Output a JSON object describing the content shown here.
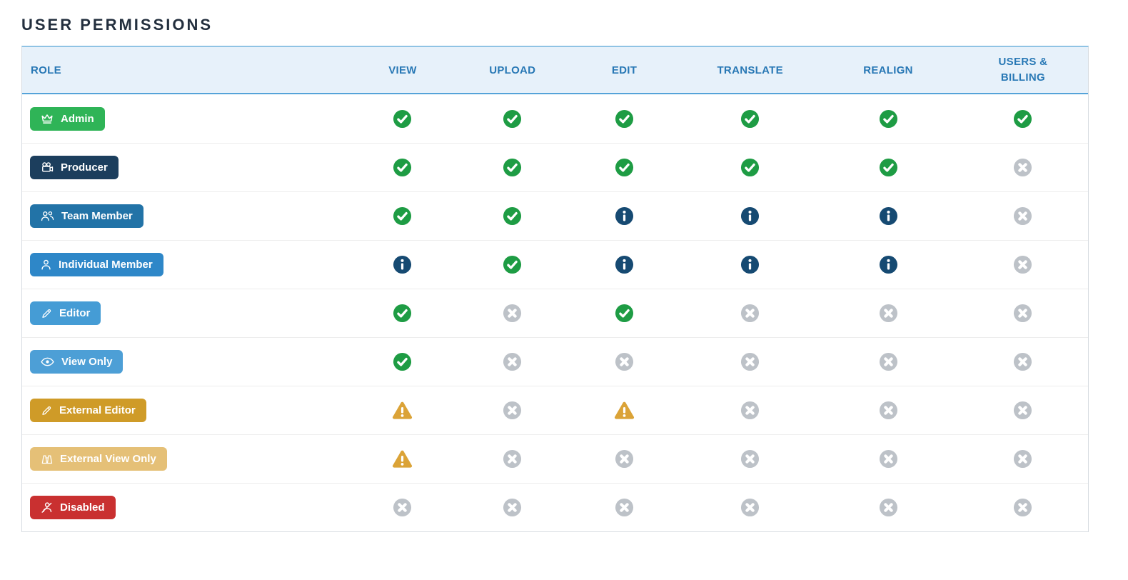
{
  "page": {
    "title": "USER PERMISSIONS"
  },
  "table": {
    "role_header": "ROLE",
    "columns": [
      "VIEW",
      "UPLOAD",
      "EDIT",
      "TRANSLATE",
      "REALIGN",
      "USERS & BILLING"
    ],
    "rows": [
      {
        "role": "Admin",
        "icon": "crown-icon",
        "badge_color": "#2fb457",
        "permissions": [
          "check-circle",
          "check-circle",
          "check-circle",
          "check-circle",
          "check-circle",
          "check-circle"
        ]
      },
      {
        "role": "Producer",
        "icon": "video-camera-icon",
        "badge_color": "#1c3e5d",
        "permissions": [
          "check-circle",
          "check-circle",
          "check-circle",
          "check-circle",
          "check-circle",
          "x-circle"
        ]
      },
      {
        "role": "Team Member",
        "icon": "team-icon",
        "badge_color": "#2273a7",
        "permissions": [
          "check-circle",
          "check-circle",
          "info-circle",
          "info-circle",
          "info-circle",
          "x-circle"
        ]
      },
      {
        "role": "Individual Member",
        "icon": "person-icon",
        "badge_color": "#2e87c8",
        "permissions": [
          "info-circle",
          "check-circle",
          "info-circle",
          "info-circle",
          "info-circle",
          "x-circle"
        ]
      },
      {
        "role": "Editor",
        "icon": "pencil-icon",
        "badge_color": "#459cd5",
        "permissions": [
          "check-circle",
          "x-circle",
          "check-circle",
          "x-circle",
          "x-circle",
          "x-circle"
        ]
      },
      {
        "role": "View Only",
        "icon": "eye-icon",
        "badge_color": "#4d9fd6",
        "permissions": [
          "check-circle",
          "x-circle",
          "x-circle",
          "x-circle",
          "x-circle",
          "x-circle"
        ]
      },
      {
        "role": "External Editor",
        "icon": "pencil-icon",
        "badge_color": "#cf9b28",
        "permissions": [
          "warning-triangle",
          "x-circle",
          "warning-triangle",
          "x-circle",
          "x-circle",
          "x-circle"
        ]
      },
      {
        "role": "External View Only",
        "icon": "binoculars-icon",
        "badge_color": "#e5c077",
        "permissions": [
          "warning-triangle",
          "x-circle",
          "x-circle",
          "x-circle",
          "x-circle",
          "x-circle"
        ]
      },
      {
        "role": "Disabled",
        "icon": "person-slash-icon",
        "badge_color": "#c93030",
        "permissions": [
          "x-circle",
          "x-circle",
          "x-circle",
          "x-circle",
          "x-circle",
          "x-circle"
        ]
      }
    ]
  },
  "colors": {
    "header_bg": "#e7f1fa",
    "header_text": "#2878b5",
    "header_border": "#55a3d9",
    "title_text": "#232f3e",
    "status": {
      "check-circle": "#1e9c44",
      "info-circle": "#164a72",
      "x-circle": "#bdc2c8",
      "warning-triangle": "#dba337"
    }
  }
}
